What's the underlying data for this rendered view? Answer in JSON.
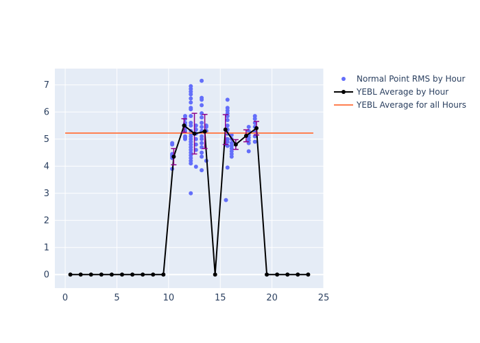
{
  "chart_data": {
    "type": "scatter",
    "title": "",
    "xlabel": "",
    "ylabel": "",
    "xlim": [
      -1,
      25
    ],
    "ylim": [
      -0.5,
      7.6
    ],
    "x_ticks": [
      0,
      5,
      10,
      15,
      20,
      25
    ],
    "y_ticks": [
      0,
      1,
      2,
      3,
      4,
      5,
      6,
      7
    ],
    "grid": true,
    "legend_position": "top-right",
    "colors": {
      "plot_bg": "#E5ECF6",
      "scatter": "#636EFA",
      "average_line": "#000000",
      "error_bar": "#8B008B",
      "overall_line": "#FF7F50"
    },
    "series": [
      {
        "name": "Normal Point RMS by Hour",
        "kind": "scatter",
        "points": [
          [
            10.35,
            3.9
          ],
          [
            10.35,
            4.3
          ],
          [
            10.35,
            4.35
          ],
          [
            10.35,
            4.4
          ],
          [
            10.35,
            4.45
          ],
          [
            10.35,
            4.8
          ],
          [
            10.35,
            4.85
          ],
          [
            11.6,
            5.0
          ],
          [
            11.6,
            5.05
          ],
          [
            11.6,
            5.1
          ],
          [
            11.6,
            5.3
          ],
          [
            11.6,
            5.4
          ],
          [
            11.6,
            5.5
          ],
          [
            11.6,
            5.6
          ],
          [
            11.6,
            5.75
          ],
          [
            11.6,
            5.85
          ],
          [
            12.15,
            3.0
          ],
          [
            12.15,
            4.1
          ],
          [
            12.15,
            4.2
          ],
          [
            12.15,
            4.3
          ],
          [
            12.15,
            4.4
          ],
          [
            12.15,
            4.5
          ],
          [
            12.15,
            4.6
          ],
          [
            12.15,
            4.7
          ],
          [
            12.15,
            4.8
          ],
          [
            12.15,
            4.9
          ],
          [
            12.15,
            5.0
          ],
          [
            12.15,
            5.1
          ],
          [
            12.15,
            5.2
          ],
          [
            12.15,
            5.3
          ],
          [
            12.15,
            5.5
          ],
          [
            12.15,
            5.6
          ],
          [
            12.15,
            5.85
          ],
          [
            12.15,
            6.1
          ],
          [
            12.15,
            6.15
          ],
          [
            12.15,
            6.35
          ],
          [
            12.15,
            6.5
          ],
          [
            12.15,
            6.65
          ],
          [
            12.15,
            6.75
          ],
          [
            12.15,
            6.85
          ],
          [
            12.15,
            6.95
          ],
          [
            12.65,
            3.98
          ],
          [
            12.65,
            4.6
          ],
          [
            12.65,
            4.8
          ],
          [
            12.65,
            5.0
          ],
          [
            12.65,
            5.2
          ],
          [
            12.65,
            5.35
          ],
          [
            12.65,
            5.5
          ],
          [
            13.2,
            3.85
          ],
          [
            13.2,
            4.35
          ],
          [
            13.2,
            4.5
          ],
          [
            13.2,
            4.7
          ],
          [
            13.2,
            4.85
          ],
          [
            13.2,
            5.0
          ],
          [
            13.2,
            5.1
          ],
          [
            13.2,
            5.3
          ],
          [
            13.2,
            5.45
          ],
          [
            13.2,
            5.6
          ],
          [
            13.2,
            5.8
          ],
          [
            13.2,
            5.95
          ],
          [
            13.2,
            6.25
          ],
          [
            13.2,
            6.45
          ],
          [
            13.2,
            6.52
          ],
          [
            13.2,
            7.15
          ],
          [
            13.65,
            4.2
          ],
          [
            13.65,
            5.3
          ],
          [
            13.65,
            5.45
          ],
          [
            13.65,
            5.5
          ],
          [
            15.55,
            2.75
          ],
          [
            15.55,
            4.8
          ],
          [
            15.7,
            3.95
          ],
          [
            15.7,
            4.75
          ],
          [
            15.7,
            4.9
          ],
          [
            15.7,
            5.0
          ],
          [
            15.7,
            5.2
          ],
          [
            15.7,
            5.35
          ],
          [
            15.7,
            5.5
          ],
          [
            15.7,
            5.7
          ],
          [
            15.7,
            5.85
          ],
          [
            15.7,
            5.95
          ],
          [
            15.7,
            6.05
          ],
          [
            15.7,
            6.15
          ],
          [
            15.7,
            6.45
          ],
          [
            16.1,
            4.35
          ],
          [
            16.1,
            4.45
          ],
          [
            16.1,
            4.55
          ],
          [
            16.1,
            4.65
          ],
          [
            16.1,
            4.75
          ],
          [
            16.1,
            4.85
          ],
          [
            16.1,
            5.0
          ],
          [
            16.1,
            5.15
          ],
          [
            17.75,
            4.55
          ],
          [
            17.75,
            4.85
          ],
          [
            17.75,
            4.95
          ],
          [
            17.75,
            5.05
          ],
          [
            17.75,
            5.15
          ],
          [
            17.75,
            5.3
          ],
          [
            17.75,
            5.45
          ],
          [
            18.35,
            4.9
          ],
          [
            18.35,
            5.1
          ],
          [
            18.35,
            5.25
          ],
          [
            18.35,
            5.45
          ],
          [
            18.35,
            5.6
          ],
          [
            18.35,
            5.75
          ],
          [
            18.35,
            5.85
          ]
        ]
      },
      {
        "name": "YEBL Average by Hour",
        "kind": "line+markers",
        "x": [
          0.5,
          1.5,
          2.5,
          3.5,
          4.5,
          5.5,
          6.5,
          7.5,
          8.5,
          9.5,
          10.5,
          11.5,
          12.5,
          13.5,
          14.5,
          15.5,
          16.5,
          17.5,
          18.5,
          19.5,
          20.5,
          21.5,
          22.5,
          23.5
        ],
        "y": [
          0,
          0,
          0,
          0,
          0,
          0,
          0,
          0,
          0,
          0,
          4.35,
          5.5,
          5.2,
          5.28,
          0,
          5.35,
          4.8,
          5.12,
          5.4,
          0,
          0,
          0,
          0,
          0
        ],
        "error": [
          0,
          0,
          0,
          0,
          0,
          0,
          0,
          0,
          0,
          0,
          0.3,
          0.25,
          0.75,
          0.63,
          0,
          0.55,
          0.18,
          0.22,
          0.25,
          0,
          0,
          0,
          0,
          0
        ]
      },
      {
        "name": "YEBL Average for all Hours",
        "kind": "hline",
        "x": [
          0,
          24
        ],
        "y": 5.22
      }
    ]
  }
}
